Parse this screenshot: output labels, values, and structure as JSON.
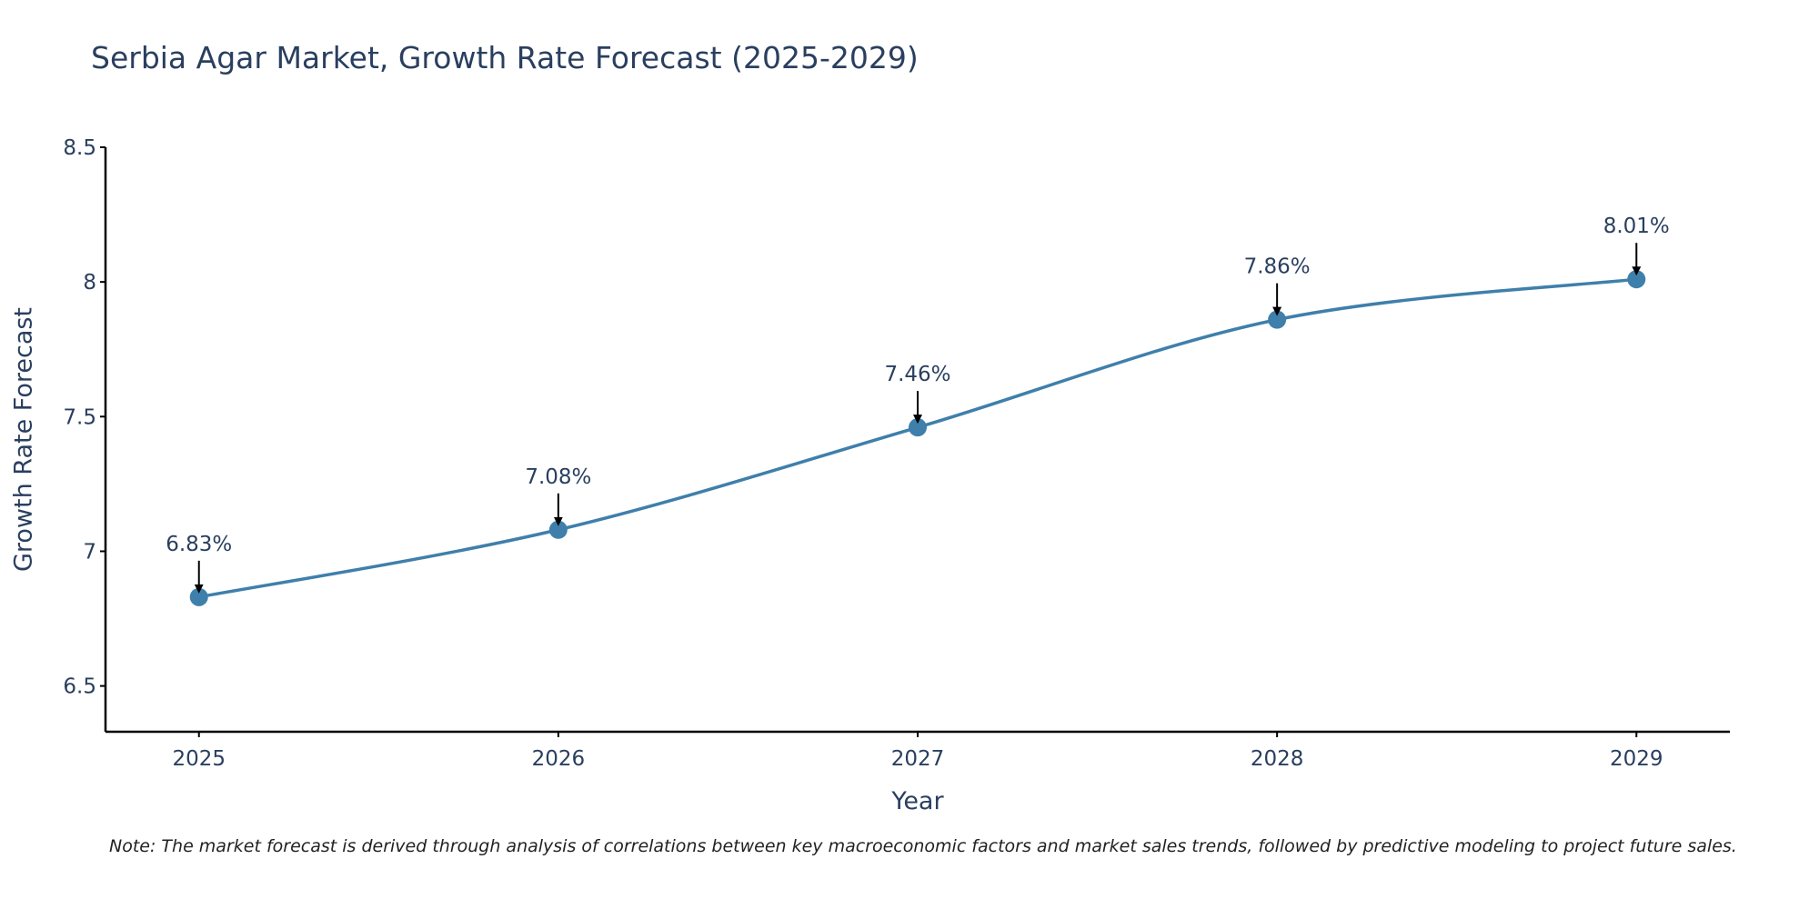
{
  "colors": {
    "line": "#3f7fab",
    "marker": "#3f7fab",
    "axis": "#000000",
    "text": "#2a3f5f",
    "arrow": "#000000"
  },
  "chart_data": {
    "type": "line",
    "title": "Serbia Agar Market, Growth Rate Forecast (2025-2029)",
    "xlabel": "Year",
    "ylabel": "Growth Rate Forecast",
    "categories": [
      "2025",
      "2026",
      "2027",
      "2028",
      "2029"
    ],
    "x": [
      2025,
      2026,
      2027,
      2028,
      2029
    ],
    "values": [
      6.83,
      7.08,
      7.46,
      7.86,
      8.01
    ],
    "data_labels": [
      "6.83%",
      "7.08%",
      "7.46%",
      "7.86%",
      "8.01%"
    ],
    "ylim": [
      6.33,
      8.5
    ],
    "yticks": [
      6.5,
      7,
      7.5,
      8,
      8.5
    ],
    "ytick_labels": [
      "6.5",
      "7",
      "7.5",
      "8",
      "8.5"
    ],
    "xlim": [
      2024.74,
      2029.26
    ],
    "grid": false,
    "line_shape": "spline"
  },
  "footnote": "Note: The market forecast is derived through analysis of correlations between key macroeconomic factors and market sales trends, followed by predictive modeling to project future sales."
}
